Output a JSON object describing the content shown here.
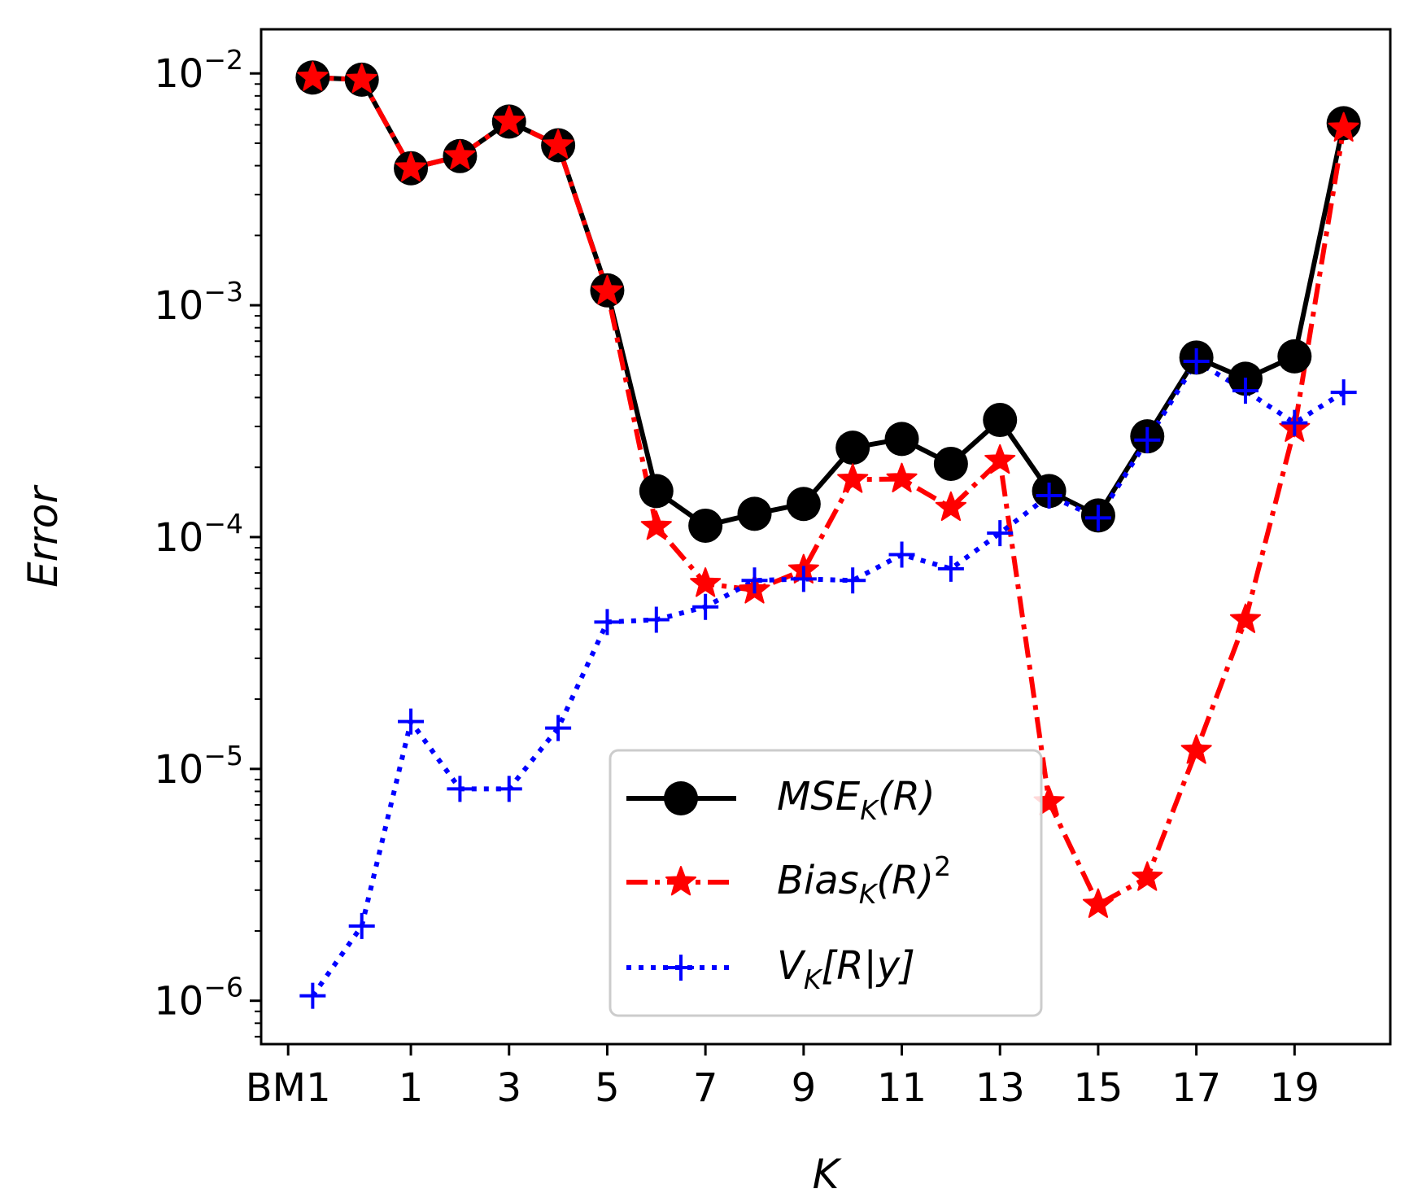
{
  "chart_data": {
    "type": "line",
    "title": "",
    "xlabel": "K",
    "ylabel": "Error",
    "yscale": "log",
    "ylim": [
      6.5e-07,
      0.0155
    ],
    "x_positions": [
      -1,
      0,
      1,
      2,
      3,
      4,
      5,
      6,
      7,
      8,
      9,
      10,
      11,
      12,
      13,
      14,
      15,
      16,
      17,
      18,
      19,
      20
    ],
    "xlim": [
      -2.05,
      20.95
    ],
    "x_tick_positions": [
      -1.5,
      1,
      3,
      5,
      7,
      9,
      11,
      13,
      15,
      17,
      19
    ],
    "x_tick_labels": [
      "BM1",
      "1",
      "3",
      "5",
      "7",
      "9",
      "11",
      "13",
      "15",
      "17",
      "19"
    ],
    "y_tick_values": [
      1e-06,
      1e-05,
      0.0001,
      0.001,
      0.01
    ],
    "y_tick_labels": [
      {
        "base": "10",
        "exp": "−6"
      },
      {
        "base": "10",
        "exp": "−5"
      },
      {
        "base": "10",
        "exp": "−4"
      },
      {
        "base": "10",
        "exp": "−3"
      },
      {
        "base": "10",
        "exp": "−2"
      }
    ],
    "series": [
      {
        "name": "MSE_K(R)",
        "color": "#000000",
        "marker": "circle",
        "linestyle": "solid",
        "values": [
          0.0096,
          0.0094,
          0.0039,
          0.0044,
          0.0062,
          0.0049,
          0.00116,
          0.000158,
          0.000112,
          0.000126,
          0.000139,
          0.000243,
          0.000265,
          0.000207,
          0.00032,
          0.000158,
          0.000124,
          0.000272,
          0.000595,
          0.000482,
          0.000602,
          0.0061
        ]
      },
      {
        "name": "Bias_K(R)^2",
        "color": "#ff0000",
        "marker": "star",
        "linestyle": "dashdot",
        "values": [
          0.0096,
          0.0094,
          0.0039,
          0.0044,
          0.0062,
          0.0049,
          0.00115,
          0.000111,
          6.3e-05,
          5.9e-05,
          7.2e-05,
          0.000177,
          0.000178,
          0.000134,
          0.000214,
          7.2e-06,
          2.6e-06,
          3.4e-06,
          1.2e-05,
          4.4e-05,
          0.000294,
          0.0058
        ]
      },
      {
        "name": "V_K[R|y]",
        "color": "#0000ff",
        "marker": "plus",
        "linestyle": "dotted",
        "values": [
          1.05e-06,
          2.1e-06,
          1.6e-05,
          8.2e-06,
          8.2e-06,
          1.5e-05,
          4.3e-05,
          4.4e-05,
          5e-05,
          6.5e-05,
          6.6e-05,
          6.5e-05,
          8.4e-05,
          7.3e-05,
          0.000104,
          0.000151,
          0.000121,
          0.000262,
          0.000573,
          0.000428,
          0.000311,
          0.000421
        ]
      }
    ],
    "legend": {
      "position": "lower-center",
      "entries": [
        {
          "main": "MSE",
          "sub": "K",
          "rest": "(R)",
          "sup": ""
        },
        {
          "main": "Bias",
          "sub": "K",
          "rest": "(R)",
          "sup": "2"
        },
        {
          "main": "V",
          "sub": "K",
          "rest": "[R|y]",
          "sup": ""
        }
      ]
    }
  }
}
